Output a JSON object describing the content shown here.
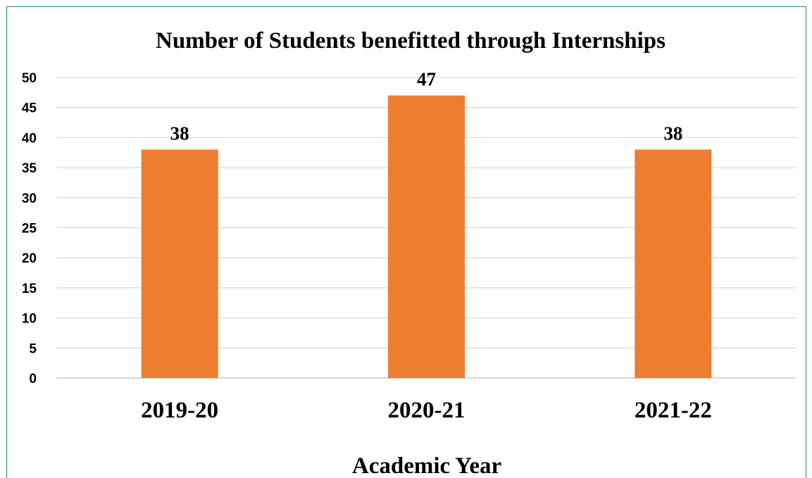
{
  "chart_data": {
    "type": "bar",
    "title": "Number of Students benefitted through Internships",
    "xlabel": "Academic Year",
    "ylabel": "",
    "categories": [
      "2019-20",
      "2020-21",
      "2021-22"
    ],
    "values": [
      38,
      47,
      38
    ],
    "data_labels": [
      "38",
      "47",
      "38"
    ],
    "yticks": [
      "0",
      "5",
      "10",
      "15",
      "20",
      "25",
      "30",
      "35",
      "40",
      "45",
      "50"
    ],
    "ylim": [
      0,
      50
    ],
    "grid": true,
    "legend": "none",
    "bar_color": "#ED7D31",
    "grid_color": "#D9D9D9",
    "frame_color": "#1A9A4A"
  }
}
